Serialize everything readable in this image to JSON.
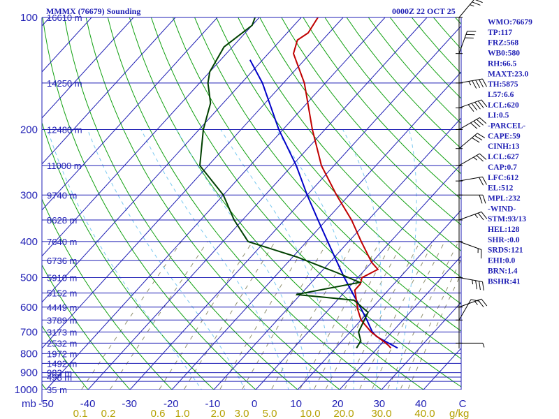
{
  "header": {
    "station": "MMMX (76679) Sounding",
    "time": "0000Z 22 OCT 25"
  },
  "colors": {
    "isobar": "#1e1eb4",
    "isotherm": "#1e1eb4",
    "dry_adiabat": "#10a010",
    "moist_adiabat": "#78c8f0",
    "mixing_ratio": "#909070",
    "temperature": "#c00000",
    "dewpoint": "#004000",
    "parcel": "#0000c8",
    "mixing_ratio_label": "#b4a000",
    "wind": "#000000"
  },
  "chart_data": {
    "type": "skew-t",
    "title": "MMMX (76679) Sounding",
    "valid_time": "0000Z 22 OCT 25",
    "pressure_range_hpa": [
      1000,
      100
    ],
    "temperature_range_c": [
      -50,
      50
    ],
    "pressure_unit_label": "mb",
    "mixing_ratio_unit_label": "g/kg",
    "pressure_labels": [
      {
        "p": 100,
        "label": "100"
      },
      {
        "p": 200,
        "label": "200"
      },
      {
        "p": 300,
        "label": "300"
      },
      {
        "p": 400,
        "label": "400"
      },
      {
        "p": 500,
        "label": "500"
      },
      {
        "p": 600,
        "label": "600"
      },
      {
        "p": 700,
        "label": "700"
      },
      {
        "p": 800,
        "label": "800"
      },
      {
        "p": 900,
        "label": "900"
      },
      {
        "p": 1000,
        "label": "1000"
      }
    ],
    "heights": [
      {
        "p": 100,
        "label": "16610 m"
      },
      {
        "p": 150,
        "label": "14250 m"
      },
      {
        "p": 200,
        "label": "12480 m"
      },
      {
        "p": 250,
        "label": "11000 m"
      },
      {
        "p": 300,
        "label": "9740 m"
      },
      {
        "p": 350,
        "label": "8628 m"
      },
      {
        "p": 400,
        "label": "7640 m"
      },
      {
        "p": 450,
        "label": "6736 m"
      },
      {
        "p": 500,
        "label": "5910 m"
      },
      {
        "p": 550,
        "label": "5152 m"
      },
      {
        "p": 600,
        "label": "4449 m"
      },
      {
        "p": 650,
        "label": "3789 m"
      },
      {
        "p": 700,
        "label": "3173 m"
      },
      {
        "p": 750,
        "label": "2532 m"
      },
      {
        "p": 800,
        "label": "1972 m"
      },
      {
        "p": 850,
        "label": "1492 m"
      },
      {
        "p": 900,
        "label": "983 m"
      },
      {
        "p": 925,
        "label": "498 m"
      },
      {
        "p": 1000,
        "label": "35 m"
      }
    ],
    "temperature_ticks": [
      "-50",
      "-40",
      "-30",
      "-20",
      "-10",
      "0",
      "10",
      "20",
      "30",
      "40",
      "C"
    ],
    "mixing_ratio_labels": [
      "0.1",
      "0.2",
      "0.6",
      "1.0",
      "2.0",
      "3.0",
      "5.0",
      "10.0",
      "20.0",
      "30.0",
      "40.0"
    ],
    "temperature_profile": [
      {
        "p": 773,
        "t": 23.2
      },
      {
        "p": 760,
        "t": 22.0
      },
      {
        "p": 742,
        "t": 20.0
      },
      {
        "p": 700,
        "t": 15.0
      },
      {
        "p": 650,
        "t": 10.0
      },
      {
        "p": 610,
        "t": 7.0
      },
      {
        "p": 560,
        "t": 3.5
      },
      {
        "p": 540,
        "t": 2.0
      },
      {
        "p": 520,
        "t": 2.0
      },
      {
        "p": 500,
        "t": 1.0
      },
      {
        "p": 475,
        "t": 3.0
      },
      {
        "p": 455,
        "t": 0.0
      },
      {
        "p": 400,
        "t": -7.0
      },
      {
        "p": 350,
        "t": -14.0
      },
      {
        "p": 300,
        "t": -23.0
      },
      {
        "p": 250,
        "t": -33.0
      },
      {
        "p": 200,
        "t": -43.0
      },
      {
        "p": 150,
        "t": -55.0
      },
      {
        "p": 125,
        "t": -64.0
      },
      {
        "p": 115,
        "t": -66.0
      },
      {
        "p": 110,
        "t": -65.0
      },
      {
        "p": 100,
        "t": -66.0
      }
    ],
    "dewpoint_profile": [
      {
        "p": 773,
        "d": 15.0
      },
      {
        "p": 740,
        "d": 14.5
      },
      {
        "p": 700,
        "d": 12.0
      },
      {
        "p": 620,
        "d": 10.0
      },
      {
        "p": 575,
        "d": 4.0
      },
      {
        "p": 555,
        "d": -11.0
      },
      {
        "p": 515,
        "d": 1.5
      },
      {
        "p": 485,
        "d": -6.0
      },
      {
        "p": 440,
        "d": -19.0
      },
      {
        "p": 400,
        "d": -34.0
      },
      {
        "p": 350,
        "d": -42.0
      },
      {
        "p": 300,
        "d": -50.0
      },
      {
        "p": 250,
        "d": -62.0
      },
      {
        "p": 200,
        "d": -69.0
      },
      {
        "p": 170,
        "d": -73.0
      },
      {
        "p": 150,
        "d": -78.0
      },
      {
        "p": 140,
        "d": -80.0
      },
      {
        "p": 120,
        "d": -82.0
      },
      {
        "p": 105,
        "d": -80.0
      },
      {
        "p": 100,
        "d": -81.0
      }
    ],
    "parcel_profile": [
      {
        "p": 773,
        "t": 24.8
      },
      {
        "p": 720,
        "t": 17.3
      },
      {
        "p": 700,
        "t": 15.3
      },
      {
        "p": 650,
        "t": 11.4
      },
      {
        "p": 600,
        "t": 7.0
      },
      {
        "p": 550,
        "t": 2.1
      },
      {
        "p": 500,
        "t": -3.2
      },
      {
        "p": 450,
        "t": -8.8
      },
      {
        "p": 400,
        "t": -15.0
      },
      {
        "p": 350,
        "t": -22.0
      },
      {
        "p": 300,
        "t": -30.0
      },
      {
        "p": 250,
        "t": -39.0
      },
      {
        "p": 200,
        "t": -51.0
      },
      {
        "p": 150,
        "t": -65.0
      },
      {
        "p": 130,
        "t": -73.0
      }
    ],
    "winds": [
      {
        "p": 100,
        "dir": 40,
        "kt": 25
      },
      {
        "p": 125,
        "dir": 20,
        "kt": 30
      },
      {
        "p": 150,
        "dir": 80,
        "kt": 45
      },
      {
        "p": 175,
        "dir": 70,
        "kt": 50
      },
      {
        "p": 200,
        "dir": 60,
        "kt": 40
      },
      {
        "p": 225,
        "dir": 50,
        "kt": 30
      },
      {
        "p": 250,
        "dir": 60,
        "kt": 25
      },
      {
        "p": 275,
        "dir": 80,
        "kt": 20
      },
      {
        "p": 300,
        "dir": 90,
        "kt": 20
      },
      {
        "p": 350,
        "dir": 70,
        "kt": 25
      },
      {
        "p": 400,
        "dir": 110,
        "kt": 15
      },
      {
        "p": 500,
        "dir": 100,
        "kt": 35
      },
      {
        "p": 600,
        "dir": 70,
        "kt": 25
      },
      {
        "p": 650,
        "dir": 30,
        "kt": 10
      },
      {
        "p": 750,
        "dir": 90,
        "kt": 5
      }
    ],
    "station_info": [
      {
        "text": "WMO:76679"
      },
      {
        "text": "TP:117"
      },
      {
        "text": "FRZ:568"
      },
      {
        "text": "WB0:580"
      },
      {
        "text": "RH:66.5"
      },
      {
        "text": "MAXT:23.0"
      },
      {
        "text": "TH:5875"
      },
      {
        "text": "L57:6.6"
      },
      {
        "text": "LCL:620"
      },
      {
        "text": "LI:0.5"
      },
      {
        "text": "-PARCEL-"
      },
      {
        "text": "CAPE:59"
      },
      {
        "text": "CINH:13"
      },
      {
        "text": "LCL:627"
      },
      {
        "text": "CAP:0.7"
      },
      {
        "text": "LFC:612"
      },
      {
        "text": "EL:512"
      },
      {
        "text": "MPL:232"
      },
      {
        "text": "-WIND-"
      },
      {
        "text": "STM:93/13"
      },
      {
        "text": "HEL:128"
      },
      {
        "text": "SHR-:0.0"
      },
      {
        "text": "SRDS:121"
      },
      {
        "text": "EHI:0.0"
      },
      {
        "text": "BRN:1.4"
      },
      {
        "text": "BSHR:41"
      }
    ]
  }
}
